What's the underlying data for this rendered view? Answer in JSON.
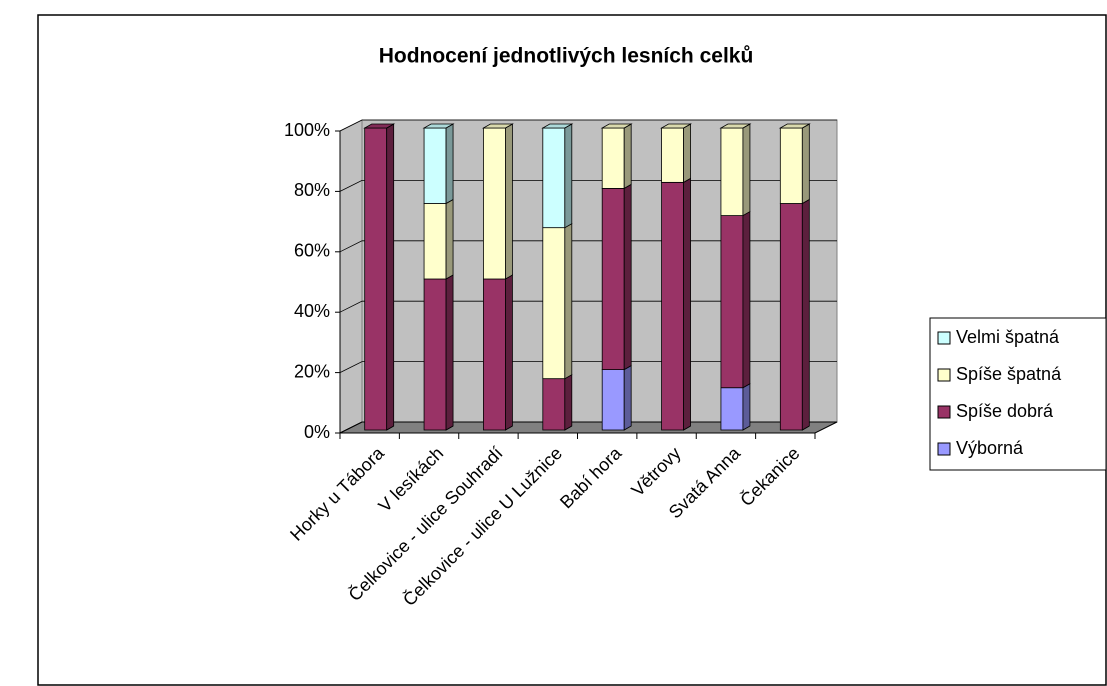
{
  "chart_data": {
    "type": "bar3d_stacked",
    "title": "Hodnocení jednotlivých lesních celků",
    "categories": [
      "Horky u Tábora",
      "V lesíkách",
      "Čelkovice - ulice Souhradí",
      "Čelkovice - ulice U Lužnice",
      "Babí hora",
      "Větrovy",
      "Svatá Anna",
      "Čekanice"
    ],
    "series": [
      {
        "name": "Výborná",
        "color": "#9999ff",
        "values": [
          0,
          0,
          0,
          0,
          20,
          0,
          14,
          0
        ]
      },
      {
        "name": "Spíše dobrá",
        "color": "#993366",
        "values": [
          100,
          50,
          50,
          17,
          60,
          82,
          57,
          75
        ]
      },
      {
        "name": "Spíše špatná",
        "color": "#ffffcc",
        "values": [
          0,
          25,
          50,
          50,
          20,
          18,
          29,
          25
        ]
      },
      {
        "name": "Velmi špatná",
        "color": "#ccffff",
        "values": [
          0,
          25,
          0,
          33,
          0,
          0,
          0,
          0
        ]
      }
    ],
    "ylim": [
      0,
      100
    ],
    "yticks": [
      {
        "value": 0,
        "label": "0%"
      },
      {
        "value": 20,
        "label": "20%"
      },
      {
        "value": 40,
        "label": "40%"
      },
      {
        "value": 60,
        "label": "60%"
      },
      {
        "value": 80,
        "label": "80%"
      },
      {
        "value": 100,
        "label": "100%"
      }
    ],
    "grid": true,
    "legend": "right"
  }
}
